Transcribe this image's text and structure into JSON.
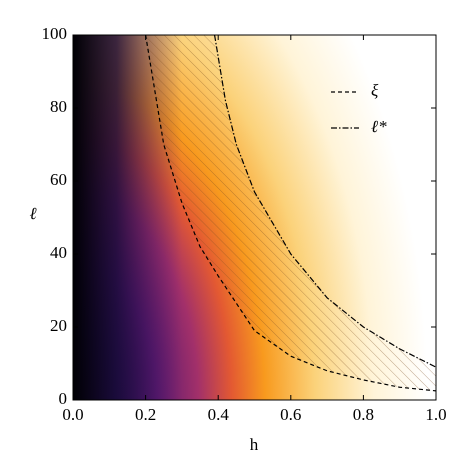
{
  "chart_data": {
    "type": "line",
    "xlabel": "h",
    "ylabel": "ℓ",
    "xlim": [
      0,
      1
    ],
    "ylim": [
      0,
      100
    ],
    "xticks": [
      {
        "value": 0,
        "label": "0.0"
      },
      {
        "value": 0.2,
        "label": "0.2"
      },
      {
        "value": 0.4,
        "label": "0.4"
      },
      {
        "value": 0.6,
        "label": "0.6"
      },
      {
        "value": 0.8,
        "label": "0.8"
      },
      {
        "value": 1,
        "label": "1.0"
      }
    ],
    "yticks": [
      0,
      20,
      40,
      60,
      80,
      100
    ],
    "legend": "upper right",
    "series": [
      {
        "name": "ξ",
        "color": "#000000",
        "dash": "dashed",
        "x": [
          0.2,
          0.25,
          0.3,
          0.35,
          0.4,
          0.5,
          0.6,
          0.7,
          0.8,
          0.9,
          1.0
        ],
        "values": [
          100,
          70,
          54,
          42,
          34,
          19,
          12,
          8,
          5.5,
          3.5,
          2.5
        ]
      },
      {
        "name": "ℓ*",
        "color": "#000000",
        "dash": "dashdot",
        "x": [
          0.39,
          0.42,
          0.45,
          0.5,
          0.6,
          0.7,
          0.8,
          0.9,
          1.0
        ],
        "values": [
          100,
          82,
          70,
          57,
          40,
          28,
          20,
          14,
          9
        ]
      }
    ]
  }
}
